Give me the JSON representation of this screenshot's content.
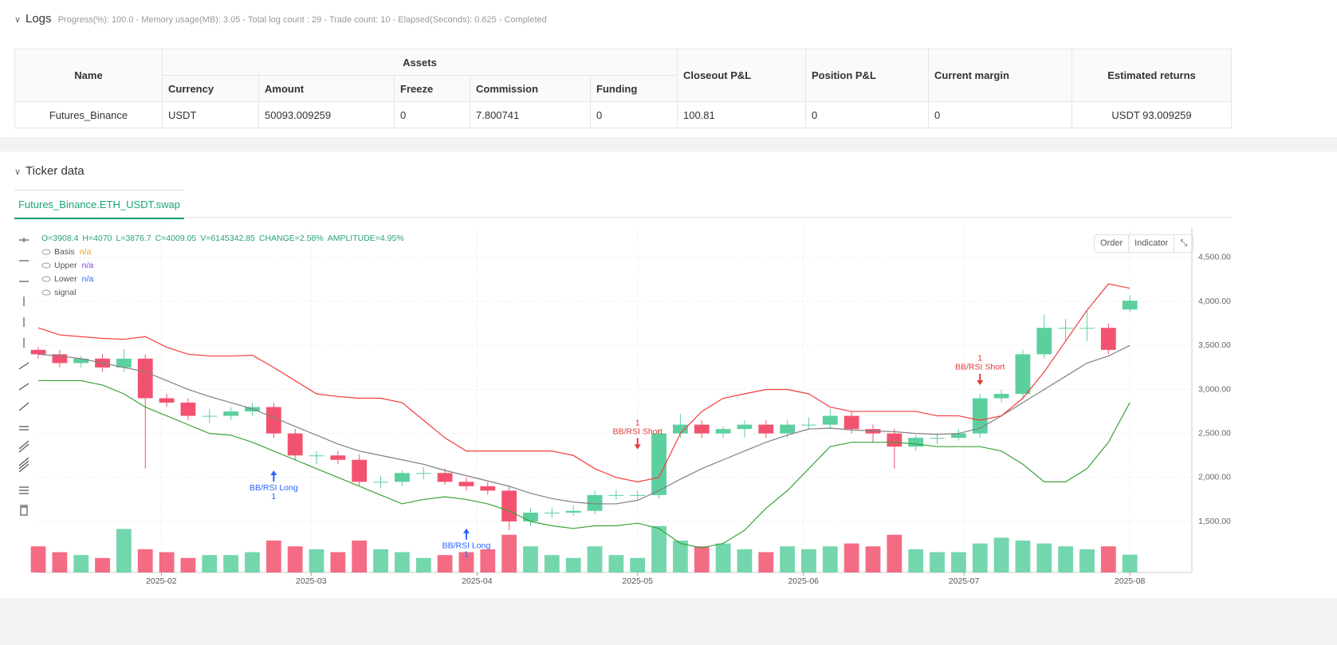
{
  "logs": {
    "title": "Logs",
    "summary": "Progress(%): 100.0 - Memory usage(MB): 3.05 - Total log count : 29 - Trade count: 10 - Elapsed(Seconds): 0.625 - Completed"
  },
  "table": {
    "group_header": "Assets",
    "columns": [
      "Name",
      "Currency",
      "Amount",
      "Freeze",
      "Commission",
      "Funding",
      "Closeout P&L",
      "Position P&L",
      "Current margin",
      "Estimated returns"
    ],
    "rows": [
      [
        "Futures_Binance",
        "USDT",
        50093.009259,
        0,
        7.800741,
        0,
        100.81,
        0,
        0,
        "USDT 93.009259"
      ]
    ]
  },
  "ticker": {
    "title": "Ticker data",
    "tab": "Futures_Binance.ETH_USDT.swap",
    "buttons": [
      "Order",
      "Indicator"
    ]
  },
  "chart_data": {
    "type": "candlestick",
    "header": [
      "O=3908.4",
      "H=4070",
      "L=3876.7",
      "C=4009.05",
      "V=6145342.85",
      "CHANGE=2.58%",
      "AMPLITUDE=4.95%"
    ],
    "x": [
      0,
      4,
      8,
      12,
      16,
      20,
      24,
      28,
      32,
      36,
      40,
      44,
      48,
      52,
      56,
      60,
      64,
      68,
      72,
      76,
      80,
      84,
      88,
      92,
      96,
      100,
      104,
      108,
      112,
      116,
      120,
      124,
      128,
      132,
      136,
      140,
      144,
      148,
      152,
      156,
      160,
      164,
      168,
      172,
      176,
      180,
      184,
      188,
      192,
      196,
      200,
      204
    ],
    "open": [
      3450,
      3400,
      3300,
      3350,
      3250,
      3350,
      2900,
      2850,
      2700,
      2700,
      2750,
      2800,
      2500,
      2250,
      2250,
      2200,
      1950,
      1950,
      2050,
      2050,
      1950,
      1900,
      1850,
      1500,
      1600,
      1600,
      1620,
      1800,
      1800,
      1800,
      2500,
      2600,
      2500,
      2550,
      2600,
      2500,
      2600,
      2600,
      2700,
      2550,
      2500,
      2350,
      2450,
      2450,
      2500,
      2900,
      2950,
      3400,
      3700,
      3700,
      3700,
      3908.4
    ],
    "high": [
      3480,
      3450,
      3380,
      3400,
      3460,
      3400,
      2950,
      2900,
      2780,
      2800,
      2850,
      2850,
      2550,
      2300,
      2300,
      2260,
      2020,
      2080,
      2120,
      2100,
      2000,
      1950,
      1900,
      1650,
      1660,
      1680,
      1850,
      1860,
      1850,
      2550,
      2720,
      2650,
      2580,
      2650,
      2650,
      2650,
      2680,
      2780,
      2750,
      2600,
      2550,
      2480,
      2500,
      2550,
      2950,
      3000,
      3450,
      3850,
      3800,
      3900,
      3750,
      4070
    ],
    "low": [
      3350,
      3250,
      3250,
      3200,
      3200,
      2100,
      2800,
      2650,
      2620,
      2650,
      2700,
      2450,
      2200,
      2150,
      2150,
      1900,
      1880,
      1900,
      1980,
      1920,
      1850,
      1800,
      1400,
      1450,
      1540,
      1560,
      1580,
      1750,
      1750,
      1760,
      2450,
      2450,
      2450,
      2450,
      2450,
      2450,
      2550,
      2550,
      2500,
      2400,
      2100,
      2300,
      2380,
      2420,
      2450,
      2850,
      2900,
      3350,
      3550,
      3550,
      3400,
      3876.7
    ],
    "close": [
      3400,
      3300,
      3350,
      3250,
      3350,
      2900,
      2850,
      2700,
      2700,
      2750,
      2800,
      2500,
      2250,
      2250,
      2200,
      1950,
      1950,
      2050,
      2050,
      1950,
      1900,
      1850,
      1500,
      1600,
      1600,
      1620,
      1800,
      1800,
      1800,
      2500,
      2600,
      2500,
      2550,
      2600,
      2500,
      2600,
      2600,
      2700,
      2550,
      2500,
      2350,
      2450,
      2450,
      2500,
      2900,
      2950,
      3400,
      3700,
      3700,
      3700,
      3450,
      4009.05
    ],
    "volume": [
      9000000,
      7000000,
      6000000,
      5000000,
      15000000,
      8000000,
      7000000,
      5000000,
      6000000,
      6000000,
      7000000,
      11000000,
      9000000,
      8000000,
      7000000,
      11000000,
      8000000,
      7000000,
      5000000,
      6000000,
      7000000,
      8000000,
      13000000,
      9000000,
      6000000,
      5000000,
      9000000,
      6000000,
      5000000,
      16000000,
      11000000,
      9000000,
      10000000,
      8000000,
      7000000,
      9000000,
      8000000,
      9000000,
      10000000,
      9000000,
      13000000,
      8000000,
      7000000,
      7000000,
      10000000,
      12000000,
      11000000,
      10000000,
      9000000,
      8000000,
      9000000,
      6145342.85
    ],
    "up_color": "#5ccf9f",
    "down_color": "#f2526f",
    "vlim": [
      0,
      16500000
    ],
    "series": [
      {
        "name": "Basis",
        "status": "n/a",
        "color": "#808080",
        "status_color": "#f59a23",
        "values": [
          3400,
          3380,
          3350,
          3300,
          3250,
          3200,
          3100,
          3000,
          2920,
          2850,
          2780,
          2680,
          2580,
          2480,
          2380,
          2300,
          2250,
          2200,
          2150,
          2080,
          2020,
          1960,
          1900,
          1820,
          1760,
          1720,
          1700,
          1700,
          1740,
          1850,
          1980,
          2100,
          2200,
          2300,
          2400,
          2480,
          2550,
          2560,
          2540,
          2530,
          2520,
          2500,
          2490,
          2500,
          2560,
          2700,
          2850,
          3000,
          3150,
          3300,
          3380,
          3500
        ]
      },
      {
        "name": "Upper",
        "status": "n/a",
        "color": "#f23c3c",
        "status_color": "#7b3fe4",
        "values": [
          3700,
          3620,
          3600,
          3580,
          3570,
          3600,
          3480,
          3400,
          3380,
          3380,
          3390,
          3250,
          3100,
          2950,
          2920,
          2900,
          2900,
          2850,
          2650,
          2450,
          2300,
          2300,
          2300,
          2300,
          2300,
          2250,
          2100,
          2000,
          1950,
          2000,
          2500,
          2750,
          2900,
          2950,
          3000,
          3000,
          2950,
          2800,
          2750,
          2750,
          2750,
          2750,
          2700,
          2700,
          2650,
          2700,
          2900,
          3200,
          3550,
          3900,
          4200,
          4150
        ]
      },
      {
        "name": "Lower",
        "status": "n/a",
        "color": "#3aa33a",
        "status_color": "#2962ff",
        "values": [
          3100,
          3100,
          3100,
          3050,
          2950,
          2800,
          2700,
          2600,
          2500,
          2480,
          2400,
          2300,
          2200,
          2100,
          2000,
          1900,
          1800,
          1700,
          1750,
          1780,
          1750,
          1700,
          1620,
          1500,
          1450,
          1420,
          1450,
          1450,
          1480,
          1420,
          1250,
          1200,
          1250,
          1400,
          1650,
          1850,
          2100,
          2350,
          2400,
          2400,
          2400,
          2380,
          2350,
          2350,
          2350,
          2300,
          2150,
          1950,
          1950,
          2100,
          2400,
          2850
        ]
      }
    ],
    "signals": {
      "name": "signal",
      "items": [
        {
          "kind": "long",
          "label": "BB/RSI Long",
          "count": "1",
          "x": 44,
          "price": 2080,
          "color": "#2962ff"
        },
        {
          "kind": "long",
          "label": "BB/RSI Long",
          "count": "1",
          "x": 80,
          "price": 1420,
          "color": "#2962ff"
        },
        {
          "kind": "short",
          "label": "BB/RSI Short",
          "count": "1",
          "x": 112,
          "price": 2320,
          "color": "#e53935"
        },
        {
          "kind": "short",
          "label": "BB/RSI Short",
          "count": "1",
          "x": 176,
          "price": 3050,
          "color": "#e53935"
        }
      ]
    },
    "xlim": [
      -0.45,
      215.6
    ],
    "xticks": [
      {
        "value": 23,
        "label": "2025-02"
      },
      {
        "value": 51,
        "label": "2025-03"
      },
      {
        "value": 82,
        "label": "2025-04"
      },
      {
        "value": 112,
        "label": "2025-05"
      },
      {
        "value": 143,
        "label": "2025-06"
      },
      {
        "value": 173,
        "label": "2025-07"
      },
      {
        "value": 204,
        "label": "2025-08"
      }
    ],
    "ylim": [
      920,
      4844
    ],
    "yticks": [
      {
        "value": 1500,
        "label": "1,500.00"
      },
      {
        "value": 2000,
        "label": "2,000.00"
      },
      {
        "value": 2500,
        "label": "2,500.00"
      },
      {
        "value": 3000,
        "label": "3,000.00"
      },
      {
        "value": 3500,
        "label": "3,500.00"
      },
      {
        "value": 4000,
        "label": "4,000.00"
      },
      {
        "value": 4500,
        "label": "4,500.00"
      }
    ],
    "grid": true
  }
}
